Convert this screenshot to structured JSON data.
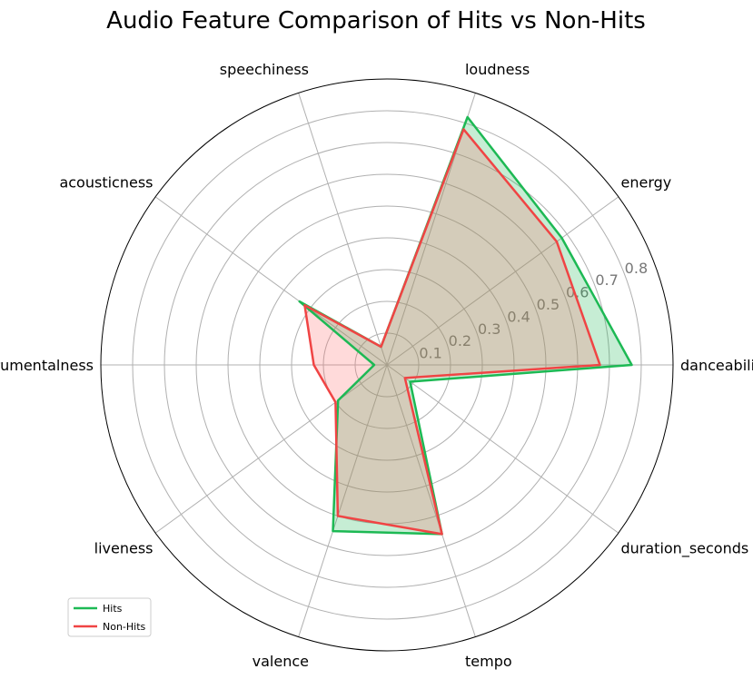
{
  "chart_data": {
    "type": "radar",
    "title": "Audio Feature Comparison of Hits vs Non-Hits",
    "axes": [
      "danceability",
      "energy",
      "loudness",
      "speechiness",
      "acousticness",
      "instrumentalness",
      "liveness",
      "valence",
      "tempo",
      "duration_seconds"
    ],
    "r_ticks": [
      "0.1",
      "0.2",
      "0.3",
      "0.4",
      "0.5",
      "0.6",
      "0.7",
      "0.8"
    ],
    "rlim": [
      0,
      0.9
    ],
    "grid": true,
    "legend_position": "lower-left",
    "series": [
      {
        "name": "Hits",
        "color": "#1db954",
        "fill": "#1db954",
        "values": [
          0.77,
          0.68,
          0.82,
          0.06,
          0.34,
          0.04,
          0.19,
          0.55,
          0.56,
          0.09
        ]
      },
      {
        "name": "Non-Hits",
        "color": "#f04444",
        "fill": "#ff6b6b",
        "values": [
          0.67,
          0.66,
          0.78,
          0.06,
          0.32,
          0.23,
          0.2,
          0.5,
          0.56,
          0.07
        ]
      }
    ]
  }
}
